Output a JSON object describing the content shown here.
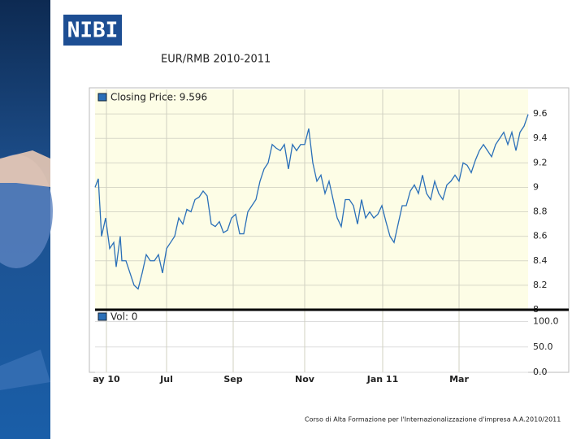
{
  "title": "EUR/RMB  2010-2011",
  "logo": "NIBI",
  "footer": "Corso di Alta Formazione per l'Internazionalizzazione d'impresa A.A.2010/2011",
  "chart_data": {
    "type": "line",
    "price_legend": "Closing Price: 9.596",
    "volume_legend": "Vol: 0",
    "x": [
      117,
      121,
      125,
      130,
      135,
      140,
      143,
      148,
      150,
      155,
      160,
      165,
      170,
      175,
      180,
      185,
      190,
      195,
      200,
      205,
      210,
      215,
      220,
      225,
      230,
      235,
      240,
      245,
      250,
      255,
      260,
      265,
      270,
      275,
      280,
      285,
      290,
      295,
      300,
      305,
      310,
      315,
      320,
      325,
      330,
      335,
      340,
      345,
      350,
      355,
      360,
      365,
      370,
      375,
      380,
      385,
      390,
      395,
      400,
      405,
      410,
      415,
      420,
      425,
      430,
      435,
      440,
      445,
      450,
      455,
      460,
      465,
      470,
      475,
      480,
      485,
      490,
      495,
      500,
      505,
      510,
      515,
      520,
      525,
      530,
      535,
      540,
      545,
      550,
      555,
      560,
      565,
      570,
      575,
      580,
      585,
      590,
      595,
      600,
      605,
      610,
      615,
      620,
      625,
      630,
      635,
      640,
      645,
      650
    ],
    "series": [
      {
        "name": "Closing Price",
        "color": "#2a6fb8",
        "values": [
          9.0,
          9.07,
          8.6,
          8.75,
          8.5,
          8.55,
          8.35,
          8.6,
          8.4,
          8.4,
          8.3,
          8.2,
          8.17,
          8.3,
          8.45,
          8.4,
          8.4,
          8.45,
          8.3,
          8.5,
          8.55,
          8.6,
          8.75,
          8.7,
          8.82,
          8.8,
          8.9,
          8.92,
          8.97,
          8.93,
          8.7,
          8.68,
          8.72,
          8.63,
          8.65,
          8.75,
          8.78,
          8.62,
          8.62,
          8.8,
          8.85,
          8.9,
          9.05,
          9.15,
          9.2,
          9.35,
          9.32,
          9.3,
          9.35,
          9.15,
          9.35,
          9.3,
          9.35,
          9.35,
          9.48,
          9.2,
          9.05,
          9.1,
          8.95,
          9.05,
          8.9,
          8.75,
          8.68,
          8.9,
          8.9,
          8.85,
          8.7,
          8.9,
          8.75,
          8.8,
          8.75,
          8.78,
          8.85,
          8.72,
          8.6,
          8.55,
          8.7,
          8.85,
          8.85,
          8.97,
          9.02,
          8.95,
          9.1,
          8.95,
          8.9,
          9.05,
          8.95,
          8.9,
          9.02,
          9.05,
          9.1,
          9.05,
          9.2,
          9.18,
          9.12,
          9.22,
          9.3,
          9.35,
          9.3,
          9.25,
          9.35,
          9.4,
          9.45,
          9.35,
          9.45,
          9.3,
          9.45,
          9.5,
          9.596
        ]
      }
    ],
    "xlim": [
      117,
      650
    ],
    "xticks": [
      {
        "value": 131,
        "label": "ay 10"
      },
      {
        "value": 205,
        "label": "Jul"
      },
      {
        "value": 287,
        "label": "Sep"
      },
      {
        "value": 375,
        "label": "Nov"
      },
      {
        "value": 471,
        "label": "Jan 11"
      },
      {
        "value": 565,
        "label": "Mar"
      }
    ],
    "ylim": [
      8,
      9.8
    ],
    "yticks": [
      8,
      8.2,
      8.4,
      8.6,
      8.8,
      9,
      9.2,
      9.4,
      9.6
    ],
    "y2lim": [
      0,
      120
    ],
    "y2ticks": [
      {
        "value": 0,
        "label": "0.0"
      },
      {
        "value": 50,
        "label": "50.0"
      },
      {
        "value": 100,
        "label": "100.0"
      }
    ],
    "grid": true
  }
}
